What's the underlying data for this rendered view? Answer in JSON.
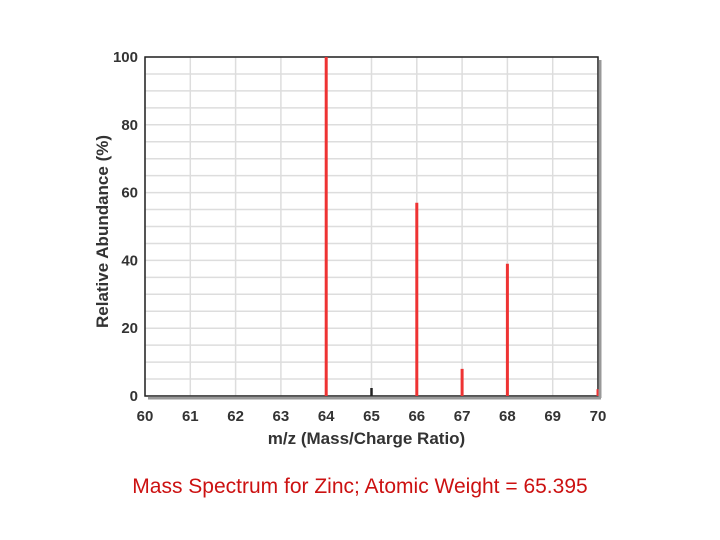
{
  "caption": "Mass Spectrum for Zinc; Atomic Weight = 65.395",
  "colors": {
    "peak": "#ee3333",
    "grid": "#dddddd",
    "frame": "#222222",
    "text": "#333333",
    "caption": "#cc1111"
  },
  "chart_data": {
    "type": "bar",
    "title": "",
    "xlabel": "m/z (Mass/Charge Ratio)",
    "ylabel": "Relative Abundance (%)",
    "xlim": [
      60,
      70
    ],
    "ylim": [
      0,
      100
    ],
    "xticks": [
      "60",
      "61",
      "62",
      "63",
      "64",
      "65",
      "66",
      "67",
      "68",
      "69",
      "70"
    ],
    "yticks": [
      "0",
      "20",
      "40",
      "60",
      "80",
      "100"
    ],
    "grid": true,
    "x": [
      64,
      66,
      67,
      68,
      70
    ],
    "values": [
      100,
      57,
      8,
      39,
      2
    ]
  }
}
